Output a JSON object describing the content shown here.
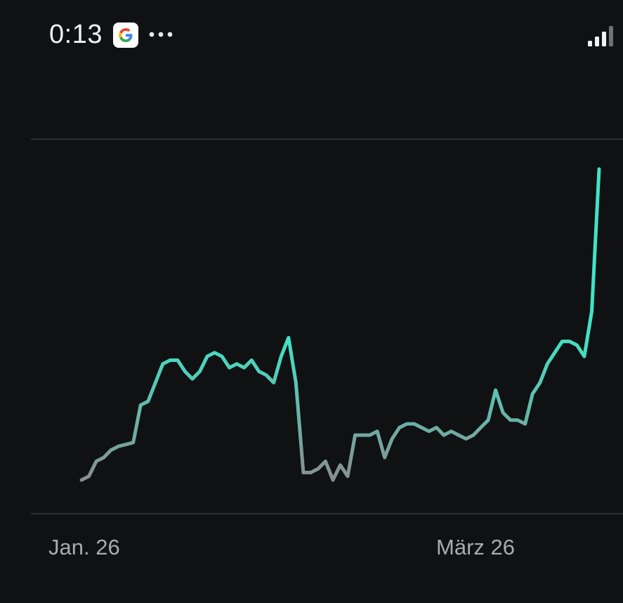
{
  "status_bar": {
    "time": "0:13",
    "notification_icon": "google-g-icon",
    "more_icon": "more-dots-icon",
    "signal_icon": "signal-bars-icon"
  },
  "chart_data": {
    "type": "line",
    "xlabel": "",
    "ylabel": "",
    "x_ticks": [
      "Jan. 26",
      "März 26"
    ],
    "ylim": [
      0,
      100
    ],
    "grid": true,
    "line_color_start": "#8a8d8f",
    "line_color_end": "#3fe3c6",
    "series": [
      {
        "values": [
          9,
          10,
          14,
          15,
          17,
          18,
          18.5,
          19,
          29,
          30,
          35,
          40,
          41,
          41,
          38,
          36,
          38,
          42,
          43,
          42,
          39,
          40,
          39,
          41,
          38,
          37,
          35,
          42,
          47,
          35,
          11,
          11,
          12,
          14,
          9,
          13,
          10,
          21,
          21,
          21,
          22,
          15,
          20,
          23,
          24,
          24,
          23,
          22,
          23,
          21,
          22,
          21,
          20,
          21,
          23,
          25,
          33,
          27,
          25,
          25,
          24,
          32,
          35,
          40,
          43,
          46,
          46,
          45,
          42,
          54,
          92
        ]
      }
    ]
  }
}
